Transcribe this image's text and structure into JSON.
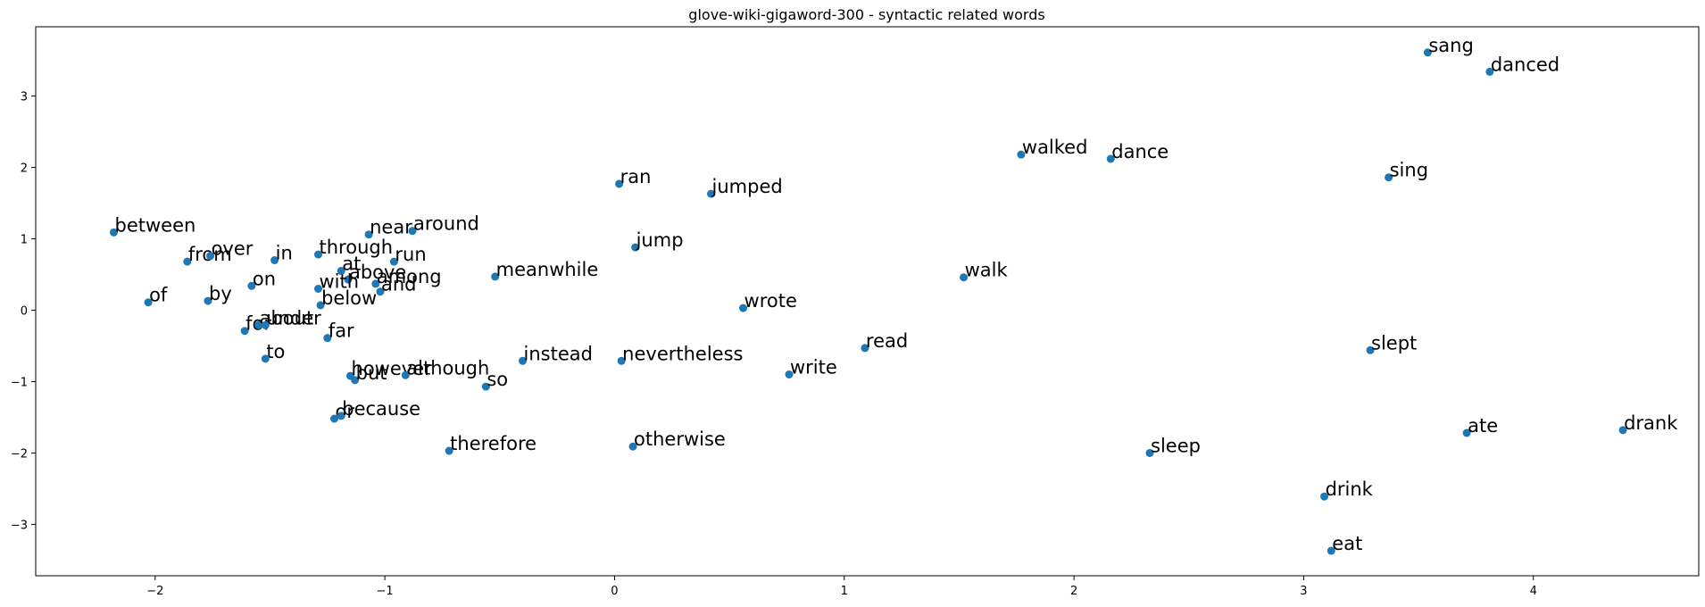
{
  "chart_data": {
    "type": "scatter",
    "title": "glove-wiki-gigaword-300 - syntactic related words",
    "xlabel": "",
    "ylabel": "",
    "xlim": [
      -2.52,
      4.72
    ],
    "ylim": [
      -3.72,
      3.97
    ],
    "xticks": [
      -2,
      -1,
      0,
      1,
      2,
      3,
      4
    ],
    "yticks": [
      -3,
      -2,
      -1,
      0,
      1,
      2,
      3
    ],
    "grid": false,
    "point_color": "#1f77b4",
    "points": [
      {
        "label": "sang",
        "x": 3.54,
        "y": 3.61
      },
      {
        "label": "danced",
        "x": 3.81,
        "y": 3.34
      },
      {
        "label": "walked",
        "x": 1.77,
        "y": 2.18
      },
      {
        "label": "dance",
        "x": 2.16,
        "y": 2.12
      },
      {
        "label": "sing",
        "x": 3.37,
        "y": 1.86
      },
      {
        "label": "ran",
        "x": 0.02,
        "y": 1.77
      },
      {
        "label": "jumped",
        "x": 0.42,
        "y": 1.63
      },
      {
        "label": "between",
        "x": -2.18,
        "y": 1.09
      },
      {
        "label": "near",
        "x": -1.07,
        "y": 1.06
      },
      {
        "label": "around",
        "x": -0.88,
        "y": 1.11
      },
      {
        "label": "jump",
        "x": 0.09,
        "y": 0.88
      },
      {
        "label": "from",
        "x": -1.86,
        "y": 0.68
      },
      {
        "label": "over",
        "x": -1.76,
        "y": 0.76
      },
      {
        "label": "in",
        "x": -1.48,
        "y": 0.7
      },
      {
        "label": "through",
        "x": -1.29,
        "y": 0.78
      },
      {
        "label": "run",
        "x": -0.96,
        "y": 0.68
      },
      {
        "label": "at",
        "x": -1.19,
        "y": 0.55
      },
      {
        "label": "above",
        "x": -1.16,
        "y": 0.43
      },
      {
        "label": "among",
        "x": -1.04,
        "y": 0.37
      },
      {
        "label": "and",
        "x": -1.02,
        "y": 0.26
      },
      {
        "label": "with",
        "x": -1.29,
        "y": 0.3
      },
      {
        "label": "meanwhile",
        "x": -0.52,
        "y": 0.47
      },
      {
        "label": "walk",
        "x": 1.52,
        "y": 0.46
      },
      {
        "label": "on",
        "x": -1.58,
        "y": 0.34
      },
      {
        "label": "of",
        "x": -2.03,
        "y": 0.11
      },
      {
        "label": "by",
        "x": -1.77,
        "y": 0.13
      },
      {
        "label": "below",
        "x": -1.28,
        "y": 0.07
      },
      {
        "label": "wrote",
        "x": 0.56,
        "y": 0.03
      },
      {
        "label": "for",
        "x": -1.61,
        "y": -0.29
      },
      {
        "label": "about",
        "x": -1.55,
        "y": -0.21
      },
      {
        "label": "under",
        "x": -1.52,
        "y": -0.21
      },
      {
        "label": "far",
        "x": -1.25,
        "y": -0.39
      },
      {
        "label": "read",
        "x": 1.09,
        "y": -0.53
      },
      {
        "label": "slept",
        "x": 3.29,
        "y": -0.56
      },
      {
        "label": "to",
        "x": -1.52,
        "y": -0.68
      },
      {
        "label": "instead",
        "x": -0.4,
        "y": -0.71
      },
      {
        "label": "nevertheless",
        "x": 0.03,
        "y": -0.71
      },
      {
        "label": "however",
        "x": -1.15,
        "y": -0.92
      },
      {
        "label": "although",
        "x": -0.91,
        "y": -0.91
      },
      {
        "label": "but",
        "x": -1.13,
        "y": -0.98
      },
      {
        "label": "write",
        "x": 0.76,
        "y": -0.9
      },
      {
        "label": "so",
        "x": -0.56,
        "y": -1.07
      },
      {
        "label": "or",
        "x": -1.22,
        "y": -1.52
      },
      {
        "label": "because",
        "x": -1.19,
        "y": -1.48
      },
      {
        "label": "therefore",
        "x": -0.72,
        "y": -1.97
      },
      {
        "label": "otherwise",
        "x": 0.08,
        "y": -1.91
      },
      {
        "label": "sleep",
        "x": 2.33,
        "y": -2.0
      },
      {
        "label": "ate",
        "x": 3.71,
        "y": -1.72
      },
      {
        "label": "drank",
        "x": 4.39,
        "y": -1.68
      },
      {
        "label": "drink",
        "x": 3.09,
        "y": -2.61
      },
      {
        "label": "eat",
        "x": 3.12,
        "y": -3.37
      }
    ]
  }
}
